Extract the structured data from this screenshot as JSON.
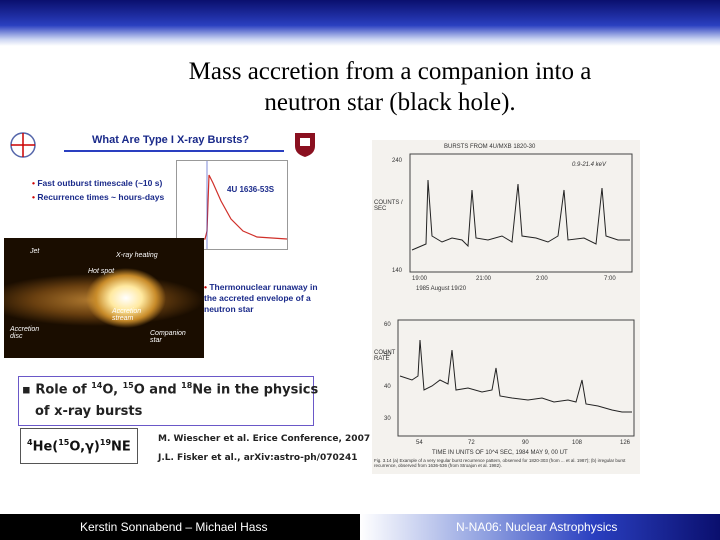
{
  "title": {
    "line1": "Mass accretion from a companion into a",
    "line2": "neutron star (black hole)."
  },
  "embedded_slide": {
    "heading": "What Are Type I X-ray Bursts?",
    "bullets": [
      "Fast outburst timescale (~10 s)",
      "Recurrence times ~ hours-days",
      "Thermonuclear runaway in the accreted envelope of a neutron star"
    ],
    "burst_label": "4U 1636-53S",
    "labels": [
      "Jet",
      "X-ray heating",
      "Hot spot",
      "Accretion stream",
      "Accretion disc",
      "Companion star"
    ]
  },
  "bullet": {
    "line1": "Role of 14O, 15O and 18Ne in the physics",
    "line2": "of x-ray bursts"
  },
  "reaction": "4He(15O,γ)19NE",
  "references": [
    "M. Wiescher et al. Erice Conference, 2007",
    "J.L. Fisker et al., arXiv:astro-ph/070241"
  ],
  "figure": {
    "top_header": "BURSTS FROM 4U/MXB 1820-30",
    "energy": "0.9-21.4 keV",
    "top_ylabel": "COUNTS / SEC",
    "top_yticks": [
      "240",
      "140"
    ],
    "top_xticks": [
      "19:00",
      "21:00",
      "2:00",
      "7:00"
    ],
    "top_xlabel": "1985 August 19/20",
    "bottom_header": "TIME IN UNITS OF 10^4 SEC, 1984 MAY 9, 00 UT",
    "bottom_ylabel": "COUNT RATE",
    "bottom_yticks": [
      "60",
      "50",
      "40",
      "30"
    ],
    "bottom_xticks": [
      "54",
      "72",
      "90",
      "108",
      "126"
    ],
    "caption": "Fig. 3.14 (a) Example of a very regular burst recurrence pattern, observed for 1820-303 (from ... et al. 1987); (b) irregular burst recurrence, observed from 1636-536 (from Stroajon et al. 1982)."
  },
  "footer": {
    "left": "Kerstin Sonnabend – Michael Hass",
    "right": "N-NA06: Nuclear Astrophysics"
  }
}
